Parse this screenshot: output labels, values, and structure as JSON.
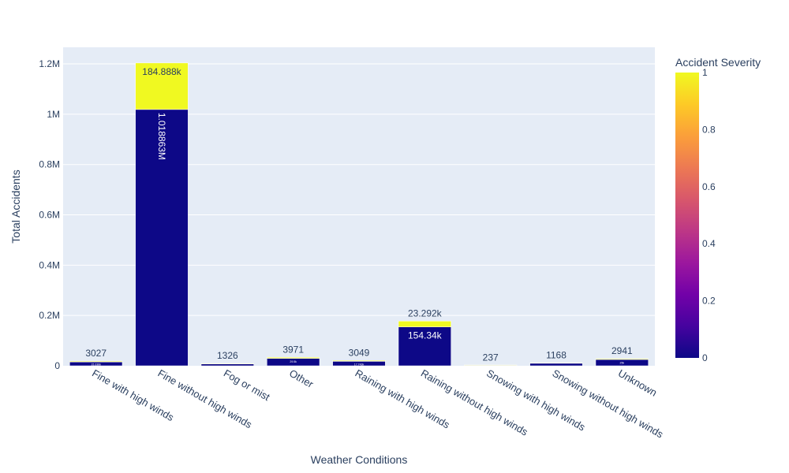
{
  "chart_data": {
    "type": "bar",
    "stacked": true,
    "title": "",
    "xlabel": "Weather Conditions",
    "ylabel": "Total Accidents",
    "ylim": [
      0,
      1266000
    ],
    "y_ticks": [
      {
        "value": 0,
        "label": "0"
      },
      {
        "value": 200000,
        "label": "0.2M"
      },
      {
        "value": 400000,
        "label": "0.4M"
      },
      {
        "value": 600000,
        "label": "0.6M"
      },
      {
        "value": 800000,
        "label": "0.8M"
      },
      {
        "value": 1000000,
        "label": "1M"
      },
      {
        "value": 1200000,
        "label": "1.2M"
      }
    ],
    "grid": true,
    "categories": [
      "Fine with high winds",
      "Fine without high winds",
      "Fog or mist",
      "Other",
      "Raining with high winds",
      "Raining without high winds",
      "Snowing with high winds",
      "Snowing without high winds",
      "Unknown"
    ],
    "series": [
      {
        "severity": 0,
        "color": "#0d0887",
        "values": [
          15336,
          1018863,
          7400,
          29500,
          17743,
          154340,
          1500,
          9900,
          25000
        ],
        "labels": [
          "15.336k",
          "1.018863M",
          "",
          "29.5k",
          "17.743k",
          "154.34k",
          "",
          "",
          "25k"
        ]
      },
      {
        "severity": 1,
        "color": "#f0f921",
        "values": [
          3027,
          184888,
          1326,
          3971,
          3049,
          23292,
          237,
          1168,
          2941
        ],
        "labels": [
          "3027",
          "184.888k",
          "1326",
          "3971",
          "3049",
          "23.292k",
          "237",
          "1168",
          "2941"
        ]
      }
    ],
    "colorbar": {
      "title": "Accident Severity",
      "range": [
        0,
        1
      ],
      "ticks": [
        "0",
        "0.2",
        "0.4",
        "0.6",
        "0.8",
        "1"
      ],
      "colorscale": [
        "#0d0887",
        "#46039f",
        "#7201a8",
        "#9c179e",
        "#bd3786",
        "#d8576b",
        "#ed7953",
        "#fb9f3a",
        "#fdca26",
        "#f0f921"
      ]
    }
  }
}
